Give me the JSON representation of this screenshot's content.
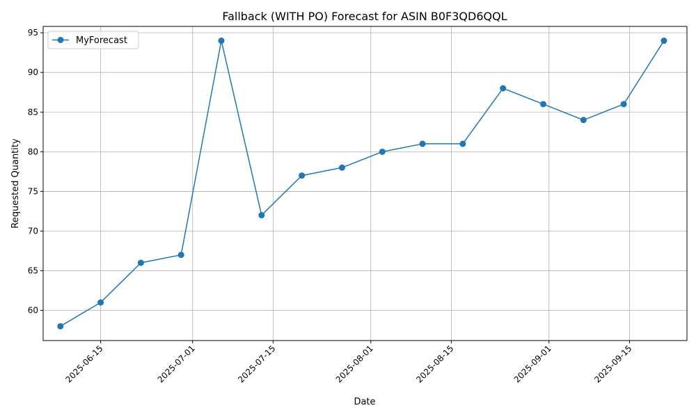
{
  "chart_data": {
    "type": "line",
    "title": "Fallback (WITH PO) Forecast for ASIN B0F3QD6QQL",
    "xlabel": "Date",
    "ylabel": "Requested Quantity",
    "grid": true,
    "legend_position": "top-left",
    "x_ticks": [
      "2025-06-15",
      "2025-07-01",
      "2025-07-15",
      "2025-08-01",
      "2025-08-15",
      "2025-09-01",
      "2025-09-15"
    ],
    "y_ticks": [
      60,
      65,
      70,
      75,
      80,
      85,
      90,
      95
    ],
    "xlim": [
      "2025-06-05",
      "2025-09-25"
    ],
    "ylim": [
      56.2,
      95.8
    ],
    "series": [
      {
        "name": "MyForecast",
        "color": "#1f77b4",
        "marker": "circle",
        "x": [
          "2025-06-08",
          "2025-06-15",
          "2025-06-22",
          "2025-06-29",
          "2025-07-06",
          "2025-07-13",
          "2025-07-20",
          "2025-07-27",
          "2025-08-03",
          "2025-08-10",
          "2025-08-17",
          "2025-08-24",
          "2025-08-31",
          "2025-09-07",
          "2025-09-14",
          "2025-09-21"
        ],
        "values": [
          58,
          61,
          66,
          67,
          94,
          72,
          77,
          78,
          80,
          81,
          81,
          88,
          86,
          84,
          86,
          94
        ]
      }
    ]
  }
}
